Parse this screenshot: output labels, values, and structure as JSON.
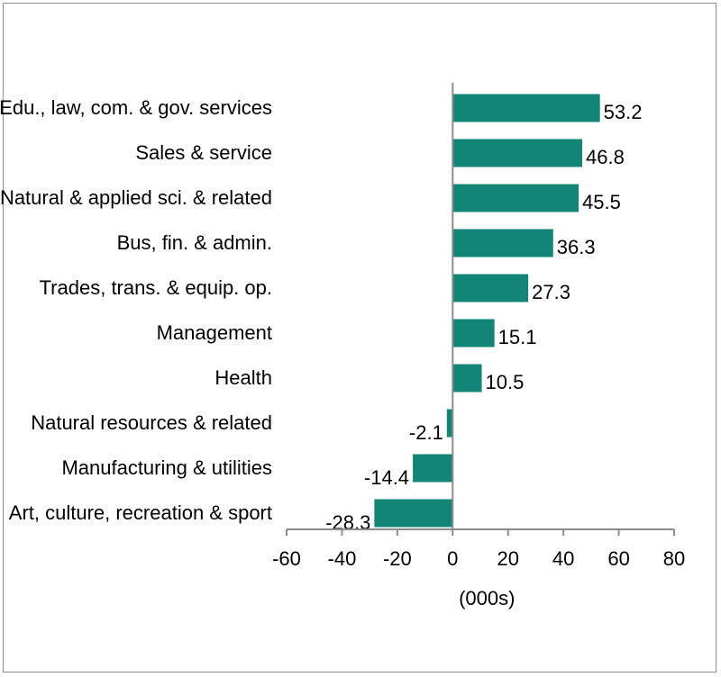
{
  "chart_data": {
    "type": "bar",
    "orientation": "horizontal",
    "categories": [
      "Edu., law, com. & gov. services",
      "Sales & service",
      "Natural & applied sci. & related",
      "Bus, fin. & admin.",
      "Trades, trans. & equip. op.",
      "Management",
      "Health",
      "Natural resources & related",
      "Manufacturing & utilities",
      "Art, culture, recreation & sport"
    ],
    "values": [
      53.2,
      46.8,
      45.5,
      36.3,
      27.3,
      15.1,
      10.5,
      -2.1,
      -14.4,
      -28.3
    ],
    "value_labels": [
      "53.2",
      "46.8",
      "45.5",
      "36.3",
      "27.3",
      "15.1",
      "10.5",
      "-2.1",
      "-14.4",
      "-28.3"
    ],
    "xlabel": "(000s)",
    "xlim": [
      -60,
      80
    ],
    "xticks": [
      "-60",
      "-40",
      "-20",
      "0",
      "20",
      "40",
      "60",
      "80"
    ],
    "bar_color": "#138577",
    "grid": false,
    "legend": "none"
  }
}
